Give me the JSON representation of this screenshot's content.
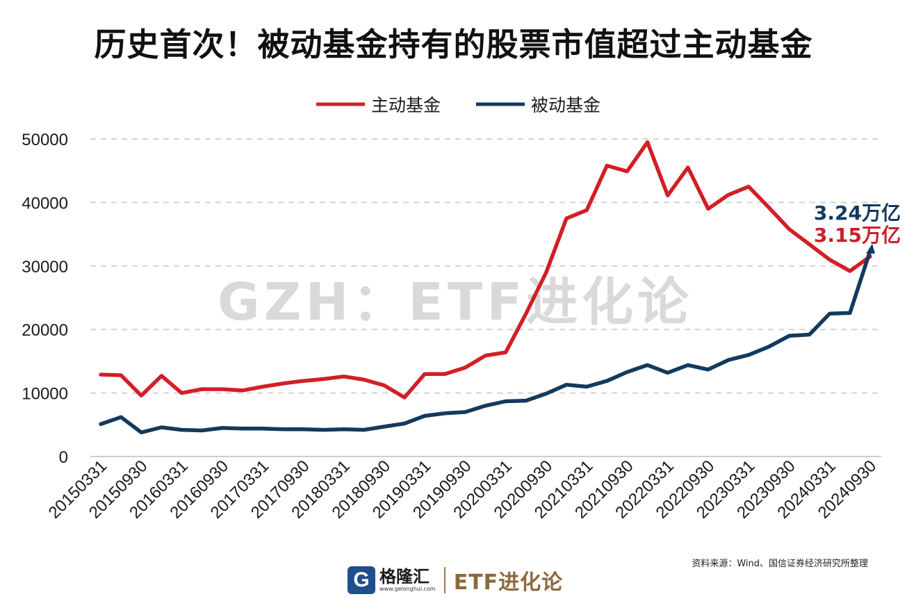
{
  "title": "历史首次！被动基金持有的股票市值超过主动基金",
  "watermark": "GZH：ETF进化论",
  "source": "资料来源：Wind、国信证券经济研究所整理",
  "footer": {
    "logo_letter": "G",
    "logo_name": "格隆汇",
    "logo_url": "www.gelonghui.com",
    "brand": "ETF进化论"
  },
  "colors": {
    "active": "#d21f26",
    "passive": "#123a5e"
  },
  "chart_data": {
    "type": "line",
    "title": "历史首次！被动基金持有的股票市值超过主动基金",
    "xlabel": "",
    "ylabel": "",
    "ylim": [
      0,
      50000
    ],
    "yticks": [
      0,
      10000,
      20000,
      30000,
      40000,
      50000
    ],
    "grid": true,
    "legend_position": "top-center",
    "x": [
      "20150331",
      "20150630",
      "20150930",
      "20151231",
      "20160331",
      "20160630",
      "20160930",
      "20161231",
      "20170331",
      "20170630",
      "20170930",
      "20171231",
      "20180331",
      "20180630",
      "20180930",
      "20181231",
      "20190331",
      "20190630",
      "20190930",
      "20191231",
      "20200331",
      "20200630",
      "20200930",
      "20201231",
      "20210331",
      "20210630",
      "20210930",
      "20211231",
      "20220331",
      "20220630",
      "20220930",
      "20221231",
      "20230331",
      "20230630",
      "20230930",
      "20231231",
      "20240331",
      "20240630",
      "20240930"
    ],
    "x_tick_labels": [
      "20150331",
      "20150930",
      "20160331",
      "20160930",
      "20170331",
      "20170930",
      "20180331",
      "20180930",
      "20190331",
      "20190930",
      "20200331",
      "20200930",
      "20210331",
      "20210930",
      "20220331",
      "20220930",
      "20230331",
      "20230930",
      "20240331",
      "20240930"
    ],
    "series": [
      {
        "name": "主动基金",
        "color": "#d21f26",
        "values": [
          12900,
          12800,
          9600,
          12700,
          10000,
          10600,
          10600,
          10400,
          11000,
          11500,
          11900,
          12200,
          12600,
          12100,
          11200,
          9300,
          13000,
          13000,
          14000,
          15900,
          16400,
          22500,
          29000,
          37500,
          38800,
          45800,
          44900,
          49500,
          41100,
          45500,
          39000,
          41200,
          42500,
          39200,
          35800,
          33400,
          31000,
          29200,
          31500
        ]
      },
      {
        "name": "被动基金",
        "color": "#123a5e",
        "values": [
          5100,
          6200,
          3800,
          4600,
          4200,
          4100,
          4500,
          4400,
          4400,
          4300,
          4300,
          4200,
          4300,
          4200,
          4700,
          5200,
          6400,
          6800,
          7000,
          8000,
          8700,
          8800,
          9900,
          11300,
          11000,
          11900,
          13300,
          14400,
          13200,
          14400,
          13700,
          15200,
          16000,
          17300,
          19000,
          19200,
          22500,
          22600,
          32400
        ]
      }
    ],
    "annotations": [
      {
        "text": "3.24万亿",
        "series": "被动基金",
        "color": "#123a5e"
      },
      {
        "text": "3.15万亿",
        "series": "主动基金",
        "color": "#c8202b"
      }
    ]
  }
}
